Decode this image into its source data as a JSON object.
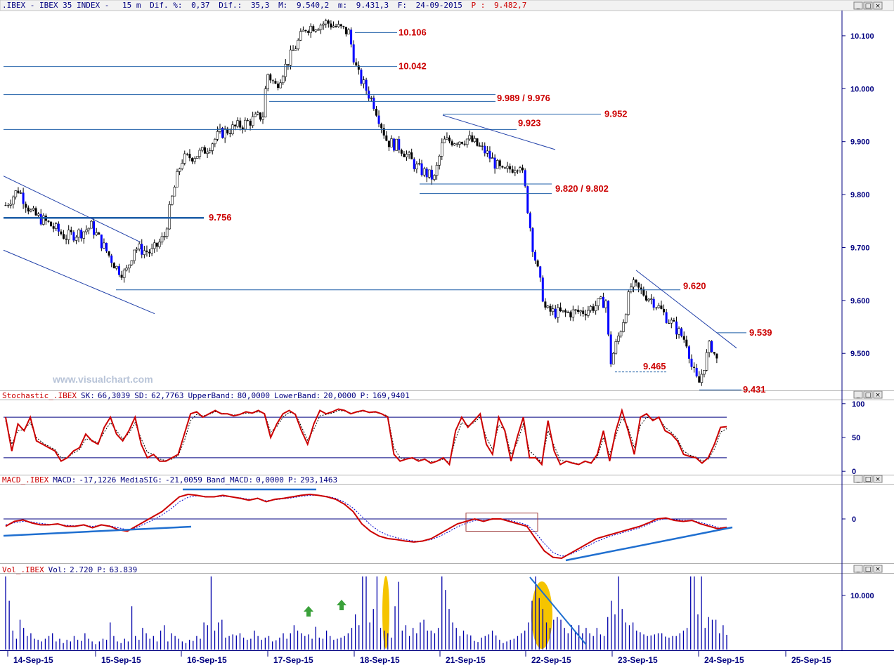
{
  "header": {
    "symbol": ".IBEX - IBEX 35 INDEX -",
    "interval": "15 m",
    "dif_pct_label": "Dif. %:",
    "dif_pct": "0,37",
    "dif_label": "Dif.:",
    "dif": "35,3",
    "max_label": "M:",
    "max": "9.540,2",
    "min_label": "m:",
    "min": "9.431,3",
    "date_label": "F:",
    "date": "24-09-2015",
    "price_label": "P :",
    "price": "9.482,7"
  },
  "watermark": "www.visualchart.com",
  "window_buttons": [
    "_",
    "□",
    "×"
  ],
  "colors": {
    "accent": "#000080",
    "level_text": "#cc0000",
    "candle_up": "#ffffff",
    "candle_down": "#000000",
    "candle_strong_down": "#0000ff",
    "stochastic": "#cc0000",
    "macd": "#cc0000",
    "signal": "#0000cc",
    "volume": "#0000aa",
    "highlight": "#f5c400",
    "arrow": "#3aa13a"
  },
  "chart_data": [
    {
      "type": "candlestick",
      "title": ".IBEX - IBEX 35 INDEX - 15 m",
      "yaxis_ticks": [
        "10.100",
        "10.000",
        "9.900",
        "9.800",
        "9.700",
        "9.600",
        "9.500"
      ],
      "ylim": [
        9430,
        10145
      ],
      "x_categories": [
        "14-Sep-15",
        "15-Sep-15",
        "16-Sep-15",
        "17-Sep-15",
        "18-Sep-15",
        "21-Sep-15",
        "22-Sep-15",
        "23-Sep-15",
        "24-Sep-15",
        "25-Sep-15"
      ],
      "close_path": [
        [
          0.0,
          9780
        ],
        [
          0.15,
          9810
        ],
        [
          0.3,
          9765
        ],
        [
          0.5,
          9745
        ],
        [
          0.7,
          9720
        ],
        [
          0.9,
          9730
        ],
        [
          1.0,
          9740
        ],
        [
          1.15,
          9700
        ],
        [
          1.3,
          9660
        ],
        [
          1.4,
          9650
        ],
        [
          1.5,
          9700
        ],
        [
          1.7,
          9690
        ],
        [
          1.85,
          9720
        ],
        [
          1.95,
          9800
        ],
        [
          2.05,
          9865
        ],
        [
          2.3,
          9880
        ],
        [
          2.5,
          9915
        ],
        [
          2.8,
          9935
        ],
        [
          3.0,
          9950
        ],
        [
          3.05,
          10030
        ],
        [
          3.15,
          10005
        ],
        [
          3.35,
          10070
        ],
        [
          3.5,
          10115
        ],
        [
          3.75,
          10125
        ],
        [
          4.0,
          10106
        ],
        [
          4.1,
          10030
        ],
        [
          4.3,
          9970
        ],
        [
          4.45,
          9900
        ],
        [
          4.6,
          9890
        ],
        [
          4.8,
          9850
        ],
        [
          5.0,
          9830
        ],
        [
          5.1,
          9900
        ],
        [
          5.4,
          9905
        ],
        [
          5.6,
          9880
        ],
        [
          5.8,
          9840
        ],
        [
          6.0,
          9860
        ],
        [
          6.05,
          9820
        ],
        [
          6.15,
          9700
        ],
        [
          6.3,
          9580
        ],
        [
          6.5,
          9575
        ],
        [
          6.75,
          9580
        ],
        [
          7.0,
          9600
        ],
        [
          7.05,
          9480
        ],
        [
          7.2,
          9560
        ],
        [
          7.3,
          9630
        ],
        [
          7.55,
          9600
        ],
        [
          7.75,
          9560
        ],
        [
          7.95,
          9520
        ],
        [
          8.0,
          9475
        ],
        [
          8.08,
          9440
        ],
        [
          8.15,
          9480
        ],
        [
          8.22,
          9520
        ],
        [
          8.3,
          9483
        ]
      ],
      "levels": [
        {
          "label": "10.106",
          "value": 10106
        },
        {
          "label": "10.042",
          "value": 10042
        },
        {
          "label": "9.989 / 9.976",
          "value": 9989
        },
        {
          "label": "9.952",
          "value": 9952
        },
        {
          "label": "9.923",
          "value": 9923
        },
        {
          "label": "9.820 / 9.802",
          "value": 9820
        },
        {
          "label": "9.756",
          "value": 9756
        },
        {
          "label": "9.620",
          "value": 9620
        },
        {
          "label": "9.539",
          "value": 9539
        },
        {
          "label": "9.465",
          "value": 9465
        },
        {
          "label": "9.431",
          "value": 9431
        }
      ]
    },
    {
      "type": "line",
      "title": "Stochastic_.IBEX",
      "legend": [
        {
          "label": "SK:",
          "value": "66,3039"
        },
        {
          "label": "SD:",
          "value": "62,7763"
        },
        {
          "label": "UpperBand:",
          "value": "80,0000"
        },
        {
          "label": "LowerBand:",
          "value": "20,0000"
        },
        {
          "label": "P:",
          "value": "169,9401"
        }
      ],
      "yaxis_ticks": [
        "100",
        "50",
        "0"
      ],
      "ylim": [
        -5,
        105
      ],
      "bands": [
        80,
        20
      ],
      "series": [
        {
          "name": "SK",
          "values": [
            80,
            30,
            70,
            60,
            80,
            45,
            40,
            35,
            30,
            15,
            20,
            30,
            35,
            55,
            45,
            40,
            65,
            80,
            55,
            45,
            60,
            80,
            40,
            20,
            25,
            15,
            15,
            20,
            25,
            55,
            85,
            88,
            80,
            85,
            90,
            85,
            85,
            82,
            84,
            88,
            86,
            90,
            85,
            50,
            70,
            85,
            90,
            84,
            60,
            40,
            70,
            90,
            85,
            88,
            92,
            90,
            85,
            88,
            90,
            87,
            88,
            85,
            80,
            25,
            15,
            18,
            20,
            15,
            18,
            12,
            15,
            20,
            10,
            60,
            80,
            65,
            75,
            85,
            40,
            25,
            80,
            60,
            15,
            50,
            80,
            20,
            20,
            10,
            75,
            30,
            10,
            15,
            12,
            10,
            15,
            12,
            25,
            60,
            15,
            60,
            90,
            60,
            25,
            80,
            85,
            75,
            80,
            60,
            55,
            45,
            25,
            22,
            20,
            12,
            20,
            40,
            65,
            66
          ]
        },
        {
          "name": "SD",
          "values": [
            75,
            40,
            60,
            62,
            72,
            50,
            42,
            37,
            32,
            20,
            20,
            27,
            32,
            48,
            46,
            42,
            58,
            72,
            60,
            48,
            56,
            72,
            48,
            28,
            25,
            18,
            16,
            18,
            23,
            45,
            75,
            84,
            82,
            84,
            88,
            86,
            85,
            83,
            84,
            86,
            86,
            88,
            86,
            58,
            66,
            80,
            87,
            85,
            66,
            46,
            62,
            82,
            84,
            86,
            90,
            89,
            86,
            87,
            89,
            87,
            87,
            85,
            82,
            35,
            20,
            18,
            19,
            17,
            17,
            14,
            15,
            18,
            13,
            48,
            72,
            68,
            72,
            80,
            50,
            32,
            68,
            62,
            25,
            42,
            70,
            30,
            22,
            13,
            60,
            38,
            16,
            15,
            13,
            11,
            14,
            13,
            21,
            50,
            25,
            52,
            80,
            65,
            35,
            68,
            80,
            77,
            79,
            65,
            58,
            48,
            30,
            24,
            21,
            15,
            18,
            33,
            58,
            63
          ]
        }
      ]
    },
    {
      "type": "line",
      "title": "MACD_.IBEX",
      "legend": [
        {
          "label": "MACD:",
          "value": "-17,1226"
        },
        {
          "label": "MediaSIG:",
          "value": "-21,0059"
        },
        {
          "label": "Band_MACD:",
          "value": "0,0000"
        },
        {
          "label": "P:",
          "value": "293,1463"
        }
      ],
      "yaxis_ticks": [
        "0"
      ],
      "ylim": [
        -90,
        70
      ],
      "zero_line": 0,
      "series": [
        {
          "name": "MACD",
          "values": [
            -15,
            -5,
            -2,
            -8,
            -12,
            -12,
            -10,
            -15,
            -15,
            -12,
            -18,
            -12,
            -15,
            -22,
            -25,
            -15,
            -5,
            5,
            15,
            30,
            45,
            50,
            48,
            45,
            45,
            48,
            45,
            42,
            38,
            42,
            35,
            40,
            42,
            45,
            48,
            50,
            48,
            45,
            40,
            30,
            15,
            -10,
            -25,
            -35,
            -40,
            -42,
            -45,
            -47,
            -45,
            -40,
            -30,
            -20,
            -10,
            -5,
            0,
            -5,
            0,
            0,
            -5,
            -10,
            -15,
            -40,
            -65,
            -78,
            -80,
            -70,
            -60,
            -50,
            -40,
            -35,
            -30,
            -25,
            -20,
            -15,
            -8,
            0,
            2,
            -3,
            -5,
            -3,
            -10,
            -15,
            -20,
            -17
          ]
        },
        {
          "name": "MediaSIG",
          "values": [
            -12,
            -8,
            -5,
            -6,
            -9,
            -11,
            -11,
            -13,
            -14,
            -13,
            -15,
            -13,
            -14,
            -18,
            -22,
            -18,
            -10,
            -2,
            8,
            20,
            35,
            44,
            47,
            46,
            45,
            46,
            45,
            43,
            40,
            41,
            37,
            39,
            41,
            43,
            46,
            48,
            48,
            46,
            42,
            34,
            22,
            5,
            -12,
            -25,
            -33,
            -38,
            -42,
            -45,
            -45,
            -42,
            -35,
            -26,
            -16,
            -9,
            -3,
            -3,
            -1,
            0,
            -3,
            -7,
            -12,
            -28,
            -50,
            -68,
            -76,
            -72,
            -64,
            -55,
            -46,
            -39,
            -33,
            -28,
            -23,
            -18,
            -11,
            -3,
            1,
            -1,
            -3,
            -3,
            -7,
            -12,
            -17,
            -20
          ]
        }
      ]
    },
    {
      "type": "bar",
      "title": "Vol_.IBEX",
      "legend": [
        {
          "label": "Vol:",
          "value": "2.720"
        },
        {
          "label": "P:",
          "value": "63.839"
        }
      ],
      "yaxis_ticks": [
        "10.000"
      ],
      "ylim": [
        0,
        14000
      ],
      "values": [
        13500,
        9000,
        3500,
        2000,
        5500,
        4000,
        2500,
        3000,
        2000,
        1800,
        1500,
        2000,
        2500,
        3000,
        1500,
        2000,
        1200,
        1800,
        1500,
        2500,
        1800,
        1600,
        3000,
        2000,
        1500,
        1000,
        1500,
        2000,
        1800,
        5000,
        2500,
        1500,
        1200,
        2000,
        1500,
        8000,
        2500,
        1800,
        4000,
        3000,
        2000,
        2500,
        1500,
        3500,
        4500,
        1500,
        3000,
        2500,
        2000,
        1500,
        1200,
        1800,
        1600,
        2500,
        2000,
        5000,
        4500,
        13500,
        3500,
        5000,
        5500,
        2200,
        2500,
        2800,
        2600,
        3000,
        2200,
        1800,
        2000,
        3500,
        2500,
        1800,
        2200,
        2500,
        1500,
        1700,
        2200,
        3000,
        2000,
        3000,
        4500,
        3500,
        3000,
        2500,
        2800,
        2000,
        4200,
        2200,
        2000,
        3500,
        2500,
        1800,
        2000,
        2200,
        2500,
        3000,
        4000,
        6500,
        4500,
        13500,
        13500,
        5000,
        7500,
        13500,
        4000,
        3500,
        3000,
        2200,
        8000,
        12500,
        3500,
        4500,
        2500,
        4000,
        3000,
        5000,
        5500,
        3500,
        3500,
        3000,
        4000,
        13500,
        11000,
        7500,
        5000,
        4000,
        2500,
        3500,
        2800,
        2600,
        1600,
        1400,
        2200,
        2500,
        2800,
        3500,
        2600,
        1800,
        1200,
        1500,
        1800,
        2000,
        2500,
        3000,
        3500,
        5000,
        9000,
        13500,
        9500,
        7500,
        5000,
        4000,
        5500,
        6000,
        5500,
        4000,
        3000,
        4500,
        3500,
        4500,
        3000,
        4000,
        3000,
        2500,
        4000,
        2800,
        2500,
        6000,
        9000,
        6500,
        13500,
        7500,
        5000,
        4500,
        5000,
        3500,
        3200,
        2800,
        2500,
        2600,
        2800,
        3000,
        3000,
        2400,
        2200,
        2500,
        2500,
        3000,
        3500,
        4000,
        13500,
        13500,
        6500,
        13500,
        4000,
        6000,
        5500,
        5500,
        3000,
        4500,
        2720
      ]
    }
  ]
}
